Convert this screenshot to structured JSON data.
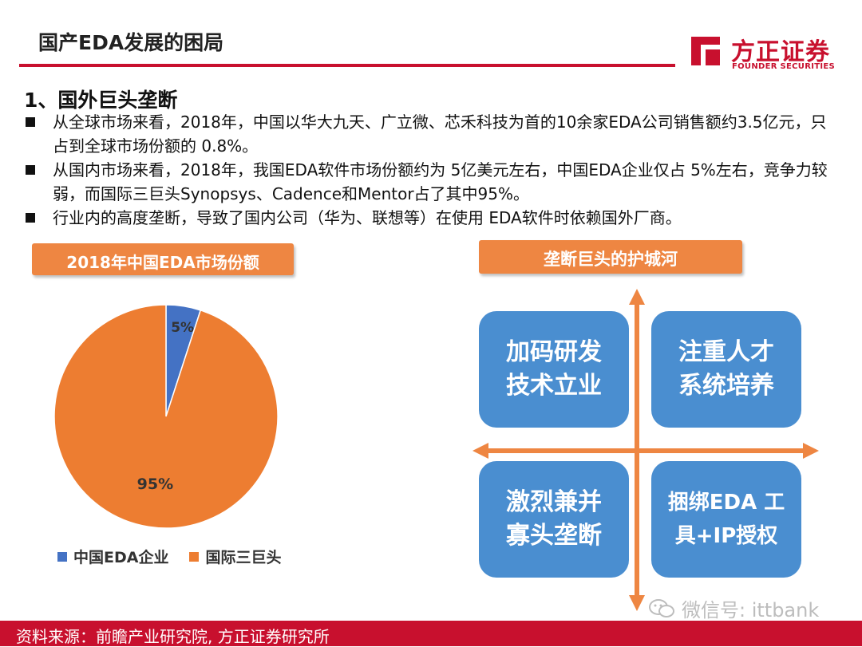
{
  "header": {
    "title": "国产EDA发展的困局",
    "logo_cn": "方正证券",
    "logo_en": "FOUNDER SECURITIES"
  },
  "section": {
    "heading": "1、国外巨头垄断",
    "bullets": [
      "从全球市场来看，2018年，中国以华大九天、广立微、芯禾科技为首的10余家EDA公司销售额约3.5亿元，只占到全球市场份额的 0.8%。",
      "从国内市场来看，2018年，我国EDA软件市场份额约为 5亿美元左右，中国EDA企业仅占 5%左右，竞争力较弱，而国际三巨头Synopsys、Cadence和Mentor占了其中95%。",
      "行业内的高度垄断，导致了国内公司（华为、联想等）在使用 EDA软件时依赖国外厂商。"
    ]
  },
  "chart_data": {
    "type": "pie",
    "title": "2018年中国EDA市场份额",
    "slices": [
      {
        "name": "中国EDA企业",
        "value": 5,
        "label": "5%",
        "color": "#4472c4"
      },
      {
        "name": "国际三巨头",
        "value": 95,
        "label": "95%",
        "color": "#ed7d31"
      }
    ],
    "legend": "bottom"
  },
  "moat": {
    "title": "垄断巨头的护城河",
    "boxes": [
      {
        "line1": "加码研发",
        "line2": "技术立业"
      },
      {
        "line1": "注重人才",
        "line2": "系统培养"
      },
      {
        "line1": "激烈兼并",
        "line2": "寡头垄断"
      },
      {
        "line1": "捆绑EDA 工",
        "line2": "具+IP授权"
      }
    ],
    "color_box": "#4a8ed0",
    "color_arrow": "#ee8642"
  },
  "watermark": "微信号: ittbank",
  "footer": {
    "source": "资料来源：前瞻产业研究院, 方正证券研究所"
  }
}
